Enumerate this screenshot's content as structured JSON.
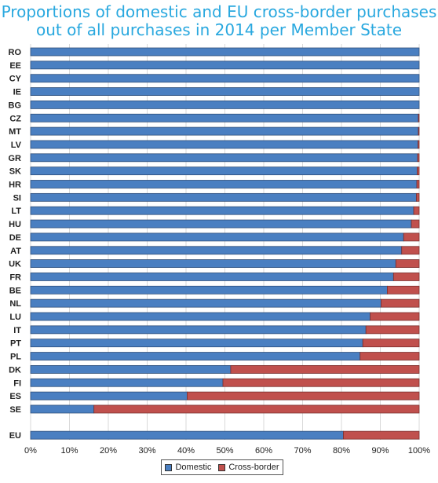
{
  "title_lines": [
    "Proportions of domestic and EU cross-border purchases",
    "out of all purchases in 2014 per Member State"
  ],
  "legend": {
    "domestic_label": "Domestic",
    "crossborder_label": "Cross-border"
  },
  "colors": {
    "title": "#29a8df",
    "domestic": "#4a7fc1",
    "crossborder": "#c0504d",
    "bar_border": "#2f4f7a",
    "grid": "#d9d9d9"
  },
  "chart_data": {
    "type": "bar",
    "orientation": "horizontal",
    "stacked": true,
    "percent": true,
    "title": "Proportions of domestic and EU cross-border purchases out of all purchases in 2014 per Member State",
    "categories": [
      "RO",
      "EE",
      "CY",
      "IE",
      "BG",
      "CZ",
      "MT",
      "LV",
      "GR",
      "SK",
      "HR",
      "SI",
      "LT",
      "HU",
      "DE",
      "AT",
      "UK",
      "FR",
      "BE",
      "NL",
      "LU",
      "IT",
      "PT",
      "PL",
      "DK",
      "FI",
      "ES",
      "SE",
      "EU"
    ],
    "series": [
      {
        "name": "Domestic",
        "values": [
          100,
          100,
          100,
          100,
          100,
          99.8,
          99.8,
          99.7,
          99.6,
          99.5,
          99.4,
          99.3,
          98.6,
          98,
          96,
          95.5,
          94,
          93.4,
          91.8,
          90.2,
          87.4,
          86.3,
          85.5,
          84.8,
          51.5,
          49.5,
          40.3,
          16.3,
          80.5
        ]
      },
      {
        "name": "Cross-border",
        "values": [
          0,
          0,
          0,
          0,
          0,
          0.2,
          0.2,
          0.3,
          0.4,
          0.5,
          0.6,
          0.7,
          1.4,
          2,
          4,
          4.5,
          6,
          6.6,
          8.2,
          9.8,
          12.6,
          13.7,
          14.5,
          15.2,
          48.5,
          50.5,
          59.7,
          83.7,
          19.5
        ]
      }
    ],
    "xlim": [
      0,
      100
    ],
    "xticks": [
      "0%",
      "10%",
      "20%",
      "30%",
      "40%",
      "50%",
      "60%",
      "70%",
      "80%",
      "90%",
      "100%"
    ],
    "grid": true,
    "legend_position": "bottom"
  }
}
